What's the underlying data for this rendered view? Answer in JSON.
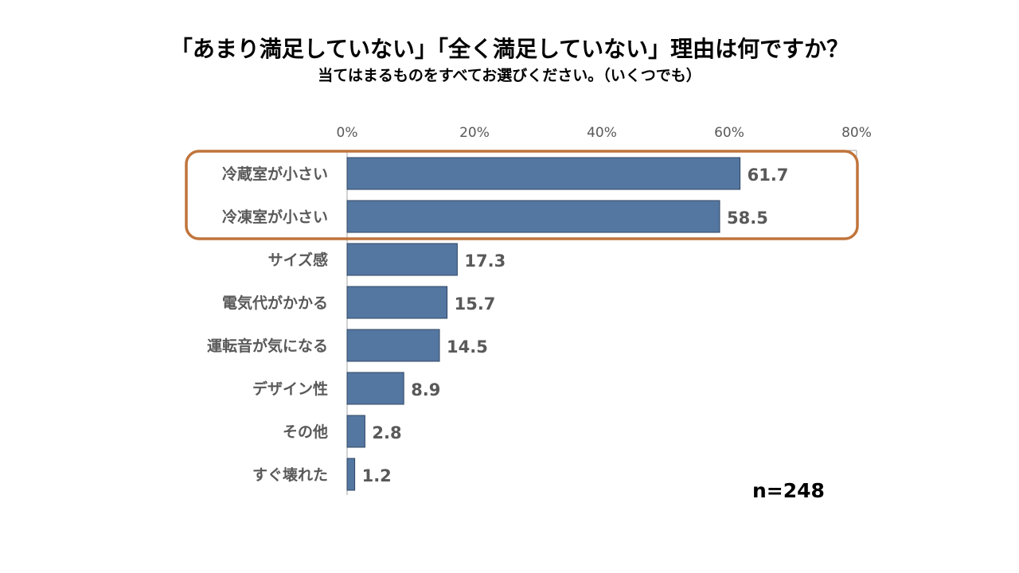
{
  "chart_data": {
    "type": "bar",
    "orientation": "horizontal",
    "title": "「あまり満足していない」「全く満足していない」理由は何ですか？",
    "subtitle": "当てはまるものをすべてお選びください。（いくつでも）",
    "categories": [
      "冷蔵室が小さい",
      "冷凍室が小さい",
      "サイズ感",
      "電気代がかかる",
      "運転音が気になる",
      "デザイン性",
      "その他",
      "すぐ壊れた"
    ],
    "values": [
      61.7,
      58.5,
      17.3,
      15.7,
      14.5,
      8.9,
      2.8,
      1.2
    ],
    "value_labels": [
      "61.7",
      "58.5",
      "17.3",
      "15.7",
      "14.5",
      "8.9",
      "2.8",
      "1.2"
    ],
    "xlim": [
      0,
      80
    ],
    "xticks": [
      0,
      20,
      40,
      60,
      80
    ],
    "xtick_labels": [
      "0%",
      "20%",
      "40%",
      "60%",
      "80%"
    ],
    "axis_position": "top",
    "highlighted_categories": [
      "冷蔵室が小さい",
      "冷凍室が小さい"
    ],
    "sample_size": "n=248",
    "colors": {
      "bar": "#5477A1",
      "bar_border": "#2F4462",
      "highlight_box": "#C0743B",
      "axis": "#A6A6A6",
      "label_text": "#595959",
      "title_text": "#000000"
    }
  }
}
